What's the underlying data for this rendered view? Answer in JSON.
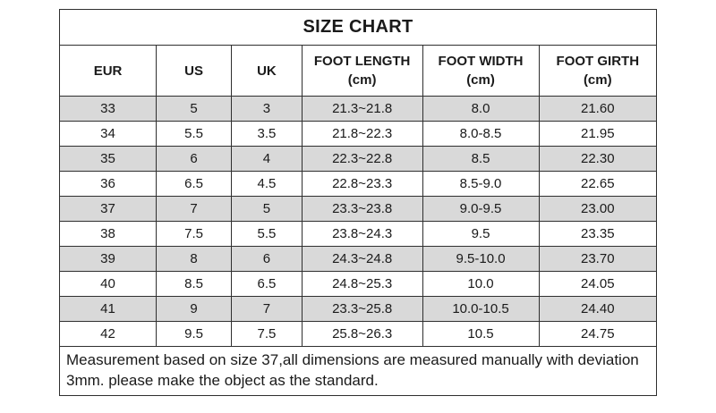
{
  "title": "SIZE CHART",
  "footnote": "Measurement based on size 37,all dimensions are measured manually with deviation 3mm. please make the object as the standard.",
  "colors": {
    "border": "#2f2f2f",
    "shaded_row": "#d9d9d9",
    "plain_row": "#ffffff",
    "text": "#1a1a1a",
    "background": "#ffffff"
  },
  "chart_data": {
    "type": "table",
    "title": "SIZE CHART",
    "columns": [
      {
        "label": "EUR",
        "unit": ""
      },
      {
        "label": "US",
        "unit": ""
      },
      {
        "label": "UK",
        "unit": ""
      },
      {
        "label": "FOOT LENGTH",
        "unit": "(cm)"
      },
      {
        "label": "FOOT WIDTH",
        "unit": "(cm)"
      },
      {
        "label": "FOOT GIRTH",
        "unit": "(cm)"
      }
    ],
    "rows": [
      [
        "33",
        "5",
        "3",
        "21.3~21.8",
        "8.0",
        "21.60"
      ],
      [
        "34",
        "5.5",
        "3.5",
        "21.8~22.3",
        "8.0-8.5",
        "21.95"
      ],
      [
        "35",
        "6",
        "4",
        "22.3~22.8",
        "8.5",
        "22.30"
      ],
      [
        "36",
        "6.5",
        "4.5",
        "22.8~23.3",
        "8.5-9.0",
        "22.65"
      ],
      [
        "37",
        "7",
        "5",
        "23.3~23.8",
        "9.0-9.5",
        "23.00"
      ],
      [
        "38",
        "7.5",
        "5.5",
        "23.8~24.3",
        "9.5",
        "23.35"
      ],
      [
        "39",
        "8",
        "6",
        "24.3~24.8",
        "9.5-10.0",
        "23.70"
      ],
      [
        "40",
        "8.5",
        "6.5",
        "24.8~25.3",
        "10.0",
        "24.05"
      ],
      [
        "41",
        "9",
        "7",
        "23.3~25.8",
        "10.0-10.5",
        "24.40"
      ],
      [
        "42",
        "9.5",
        "7.5",
        "25.8~26.3",
        "10.5",
        "24.75"
      ]
    ],
    "shaded_row_indices": [
      0,
      2,
      4,
      6,
      8
    ],
    "column_width_percents": [
      16.2,
      12.6,
      11.8,
      20.2,
      19.5,
      19.7
    ]
  }
}
